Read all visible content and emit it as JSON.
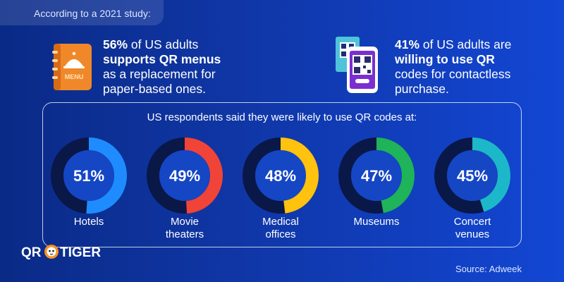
{
  "header": {
    "study_note": "According to a 2021 study:"
  },
  "stats": [
    {
      "value": "56%",
      "rest_1": " of US adults",
      "bold": "supports QR menus",
      "rest_2": "as a replacement for paper-based ones.",
      "icon": "menu-book-icon"
    },
    {
      "value": "41%",
      "rest_1": " of US adults are",
      "bold": "willing to use QR",
      "rest_2": "codes for contactless purchase.",
      "icon": "phone-qr-icon"
    }
  ],
  "menu_icon_text": "MENU",
  "panel": {
    "title": "US respondents said they were likely to use QR codes at:"
  },
  "chart_data": {
    "type": "pie",
    "title": "US respondents said they were likely to use QR codes at:",
    "categories": [
      "Hotels",
      "Movie theaters",
      "Medical offices",
      "Museums",
      "Concert venues"
    ],
    "values": [
      51,
      49,
      48,
      47,
      45
    ],
    "value_labels": [
      "51%",
      "49%",
      "48%",
      "47%",
      "45%"
    ],
    "label_lines": [
      [
        "Hotels"
      ],
      [
        "Movie",
        "theaters"
      ],
      [
        "Medical",
        "offices"
      ],
      [
        "Museums"
      ],
      [
        "Concert",
        "venues"
      ]
    ],
    "colors": [
      "#1e8cff",
      "#f04438",
      "#ffc20e",
      "#1fb35a",
      "#1cb8c9"
    ],
    "track_color": "#0a1848",
    "center_color": "#1546c4"
  },
  "logo": {
    "text_left": "QR",
    "text_right": "TIGER"
  },
  "source": "Source: Adweek"
}
